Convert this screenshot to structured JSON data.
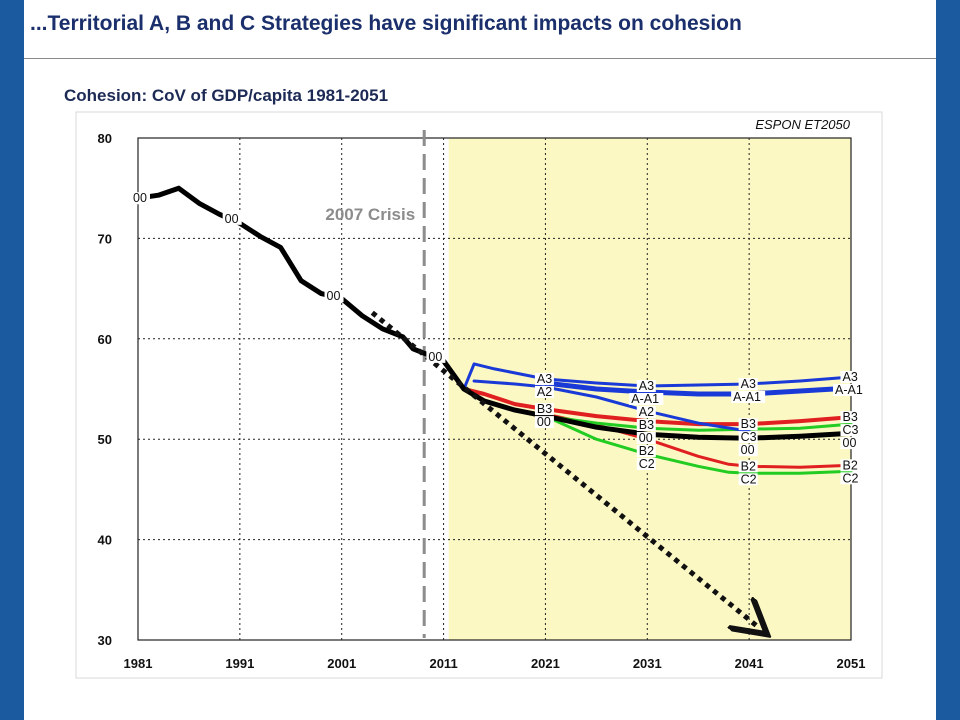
{
  "slide": {
    "title": "...Territorial A, B and C Strategies have significant impacts on cohesion",
    "colors": {
      "bar": "#1c5aa0",
      "title": "#1a2f6b"
    }
  },
  "chart_data": {
    "type": "line",
    "title": "Cohesion: CoV of GDP/capita 1981-2051",
    "watermark": "ESPON ET2050",
    "xlabel": "",
    "ylabel": "",
    "xlim": [
      1981,
      2051
    ],
    "ylim": [
      30,
      80
    ],
    "x_ticks": [
      1981,
      1991,
      2001,
      2011,
      2021,
      2031,
      2041,
      2051
    ],
    "y_ticks": [
      30,
      40,
      50,
      60,
      70,
      80
    ],
    "grid": true,
    "forecast_shading": {
      "from": 2011.5,
      "to": 2051,
      "color": "#fcf8c4"
    },
    "annotation": {
      "text": "2007 Crisis",
      "x": 2009,
      "style": "dashed vertical line"
    },
    "trend_extrapolation": {
      "from": [
        2004,
        62.6
      ],
      "to": [
        2042,
        31.2
      ],
      "style": "dotted arrow"
    },
    "series": [
      {
        "name": "00",
        "color": "#000000",
        "width": 5,
        "label_at": [
          1981,
          1990,
          2000,
          2010,
          2021,
          2031,
          2041,
          2051
        ],
        "points": [
          [
            1981,
            74
          ],
          [
            1983,
            74.3
          ],
          [
            1985,
            75
          ],
          [
            1987,
            73.5
          ],
          [
            1989,
            72.4
          ],
          [
            1991,
            71.5
          ],
          [
            1993,
            70.2
          ],
          [
            1995,
            69.1
          ],
          [
            1997,
            65.8
          ],
          [
            1999,
            64.5
          ],
          [
            2001,
            64
          ],
          [
            2003,
            62.3
          ],
          [
            2005,
            61
          ],
          [
            2007,
            60.2
          ],
          [
            2008,
            59
          ],
          [
            2011,
            57.8
          ],
          [
            2013,
            55
          ],
          [
            2015,
            53.8
          ],
          [
            2018,
            52.9
          ],
          [
            2021,
            52.3
          ],
          [
            2026,
            51.2
          ],
          [
            2031,
            50.5
          ],
          [
            2036,
            50.2
          ],
          [
            2041,
            50.1
          ],
          [
            2046,
            50.3
          ],
          [
            2051,
            50.6
          ]
        ]
      },
      {
        "name": "A3",
        "color": "#1a3ad8",
        "width": 3,
        "label_at": [
          2021,
          2031,
          2041,
          2051
        ],
        "points": [
          [
            2011,
            57.8
          ],
          [
            2013,
            55
          ],
          [
            2014,
            57.5
          ],
          [
            2016,
            57
          ],
          [
            2021,
            56
          ],
          [
            2026,
            55.6
          ],
          [
            2031,
            55.3
          ],
          [
            2036,
            55.4
          ],
          [
            2041,
            55.5
          ],
          [
            2046,
            55.8
          ],
          [
            2051,
            56.2
          ]
        ]
      },
      {
        "name": "A-A1",
        "color": "#1a3ad8",
        "width": 5,
        "label_at": [
          2031,
          2041,
          2051
        ],
        "points": [
          [
            2021,
            55.6
          ],
          [
            2026,
            55
          ],
          [
            2031,
            54.7
          ],
          [
            2036,
            54.5
          ],
          [
            2041,
            54.5
          ],
          [
            2046,
            54.8
          ],
          [
            2051,
            55.1
          ]
        ]
      },
      {
        "name": "A2",
        "color": "#1a3ad8",
        "width": 3,
        "label_at": [
          2021,
          2031
        ],
        "points": [
          [
            2014,
            55.8
          ],
          [
            2018,
            55.5
          ],
          [
            2021,
            55.2
          ],
          [
            2026,
            54.2
          ],
          [
            2031,
            52.8
          ],
          [
            2036,
            51.6
          ],
          [
            2041,
            50.8
          ]
        ]
      },
      {
        "name": "B3",
        "color": "#e02020",
        "width": 4,
        "label_at": [
          2021,
          2031,
          2041,
          2051
        ],
        "points": [
          [
            2013,
            55
          ],
          [
            2015,
            54.5
          ],
          [
            2018,
            53.5
          ],
          [
            2021,
            53
          ],
          [
            2026,
            52.3
          ],
          [
            2031,
            51.8
          ],
          [
            2036,
            51.5
          ],
          [
            2041,
            51.5
          ],
          [
            2046,
            51.8
          ],
          [
            2051,
            52.2
          ]
        ]
      },
      {
        "name": "C3",
        "color": "#22cc22",
        "width": 3,
        "label_at": [
          2041,
          2051
        ],
        "points": [
          [
            2021,
            52.3
          ],
          [
            2026,
            51.6
          ],
          [
            2031,
            51.1
          ],
          [
            2036,
            50.9
          ],
          [
            2041,
            51
          ],
          [
            2046,
            51.1
          ],
          [
            2051,
            51.5
          ]
        ]
      },
      {
        "name": "B2",
        "color": "#e02020",
        "width": 3,
        "label_at": [
          2031,
          2041,
          2051
        ],
        "points": [
          [
            2021,
            52.5
          ],
          [
            2026,
            51.4
          ],
          [
            2031,
            50
          ],
          [
            2036,
            48.3
          ],
          [
            2039,
            47.5
          ],
          [
            2041,
            47.3
          ],
          [
            2046,
            47.2
          ],
          [
            2051,
            47.4
          ]
        ]
      },
      {
        "name": "C2",
        "color": "#22cc22",
        "width": 3,
        "label_at": [
          2031,
          2041,
          2051
        ],
        "points": [
          [
            2021,
            52.3
          ],
          [
            2026,
            50
          ],
          [
            2031,
            48.5
          ],
          [
            2036,
            47.3
          ],
          [
            2039,
            46.7
          ],
          [
            2041,
            46.6
          ],
          [
            2046,
            46.6
          ],
          [
            2051,
            46.8
          ]
        ]
      }
    ]
  }
}
